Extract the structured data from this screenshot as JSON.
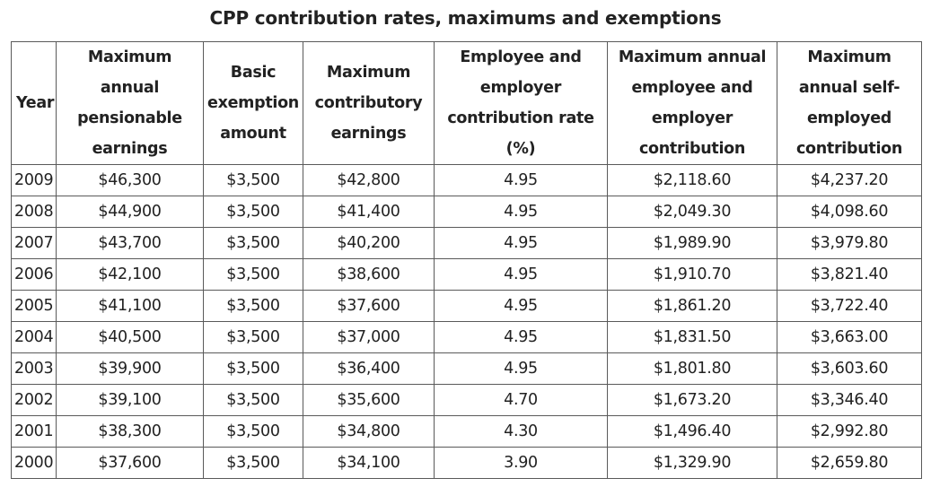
{
  "caption": "CPP contribution rates, maximums and exemptions",
  "columns": [
    "Year",
    "Maximum annual pensionable earnings",
    "Basic exemption amount",
    "Maximum contributory earnings",
    "Employee and employer contribution rate (%)",
    "Maximum annual employee and employer contribution",
    "Maximum annual self-employed contribution"
  ],
  "rows": [
    [
      "2009",
      "$46,300",
      "$3,500",
      "$42,800",
      "4.95",
      "$2,118.60",
      "$4,237.20"
    ],
    [
      "2008",
      "$44,900",
      "$3,500",
      "$41,400",
      "4.95",
      "$2,049.30",
      "$4,098.60"
    ],
    [
      "2007",
      "$43,700",
      "$3,500",
      "$40,200",
      "4.95",
      "$1,989.90",
      "$3,979.80"
    ],
    [
      "2006",
      "$42,100",
      "$3,500",
      "$38,600",
      "4.95",
      "$1,910.70",
      "$3,821.40"
    ],
    [
      "2005",
      "$41,100",
      "$3,500",
      "$37,600",
      "4.95",
      "$1,861.20",
      "$3,722.40"
    ],
    [
      "2004",
      "$40,500",
      "$3,500",
      "$37,000",
      "4.95",
      "$1,831.50",
      "$3,663.00"
    ],
    [
      "2003",
      "$39,900",
      "$3,500",
      "$36,400",
      "4.95",
      "$1,801.80",
      "$3,603.60"
    ],
    [
      "2002",
      "$39,100",
      "$3,500",
      "$35,600",
      "4.70",
      "$1,673.20",
      "$3,346.40"
    ],
    [
      "2001",
      "$38,300",
      "$3,500",
      "$34,800",
      "4.30",
      "$1,496.40",
      "$2,992.80"
    ],
    [
      "2000",
      "$37,600",
      "$3,500",
      "$34,100",
      "3.90",
      "$1,329.90",
      "$2,659.80"
    ]
  ]
}
